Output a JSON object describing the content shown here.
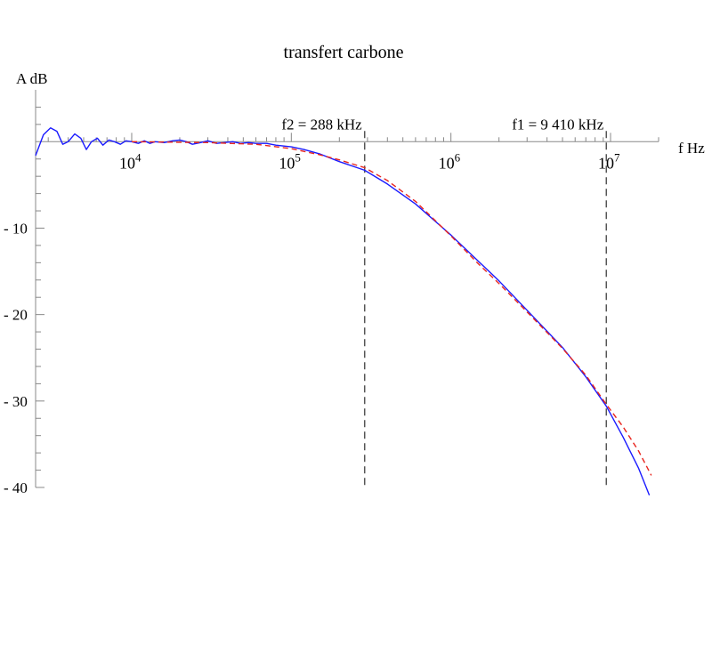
{
  "chart_data": {
    "type": "line",
    "title": "transfert carbone",
    "xlabel": "f Hz",
    "ylabel": "A dB",
    "x_scale": "log",
    "xlim": [
      2500,
      20000000
    ],
    "ylim": [
      -40,
      6
    ],
    "x_ticks": [
      {
        "value": 10000,
        "base": "10",
        "exp": "4"
      },
      {
        "value": 100000,
        "base": "10",
        "exp": "5"
      },
      {
        "value": 1000000,
        "base": "10",
        "exp": "6"
      },
      {
        "value": 10000000,
        "base": "10",
        "exp": "7"
      }
    ],
    "y_ticks": [
      {
        "value": -10,
        "label": "- 10"
      },
      {
        "value": -20,
        "label": "- 20"
      },
      {
        "value": -30,
        "label": "- 30"
      },
      {
        "value": -40,
        "label": "- 40"
      }
    ],
    "series": [
      {
        "color": "#1a1aff",
        "style": "solid",
        "x": [
          2500,
          2800,
          3100,
          3400,
          3700,
          4000,
          4400,
          4800,
          5200,
          5600,
          6100,
          6600,
          7200,
          7800,
          8500,
          9200,
          10000,
          11000,
          12000,
          13000,
          14000,
          16000,
          18000,
          20000,
          22000,
          24000,
          27000,
          30000,
          34000,
          38000,
          43000,
          48000,
          54000,
          60000,
          70000,
          80000,
          90000,
          100000,
          120000,
          150000,
          200000,
          288000,
          400000,
          600000,
          1000000,
          1500000,
          2000000,
          3000000,
          5000000,
          7000000,
          9410000,
          12000000,
          15000000,
          17500000
        ],
        "y": [
          -1.6,
          0.8,
          1.6,
          1.2,
          -0.3,
          0.0,
          0.9,
          0.4,
          -0.9,
          0.0,
          0.4,
          -0.4,
          0.2,
          0.0,
          -0.3,
          0.1,
          0.0,
          -0.2,
          0.1,
          -0.2,
          0.0,
          -0.1,
          0.1,
          0.2,
          0.0,
          -0.3,
          -0.1,
          0.1,
          -0.2,
          -0.1,
          0.0,
          -0.2,
          -0.1,
          -0.2,
          -0.2,
          -0.4,
          -0.5,
          -0.6,
          -0.9,
          -1.4,
          -2.3,
          -3.3,
          -4.9,
          -7.2,
          -10.8,
          -13.9,
          -16.1,
          -19.5,
          -23.8,
          -27.2,
          -30.6,
          -34.2,
          -37.8,
          -40.9
        ]
      },
      {
        "color": "#e8251e",
        "style": "dashed",
        "x": [
          10000,
          30000,
          60000,
          100000,
          150000,
          200000,
          288000,
          400000,
          600000,
          1000000,
          1500000,
          2000000,
          3000000,
          5000000,
          7000000,
          9410000,
          12000000,
          15000000,
          18000000
        ],
        "y": [
          0.0,
          -0.1,
          -0.3,
          -0.8,
          -1.5,
          -2.1,
          -3.0,
          -4.5,
          -6.9,
          -10.9,
          -14.2,
          -16.4,
          -19.7,
          -23.9,
          -27.0,
          -30.4,
          -33.0,
          -35.8,
          -38.6
        ]
      }
    ],
    "markers": [
      {
        "x": 288000,
        "label": "f2 = 288 kHz"
      },
      {
        "x": 9410000,
        "label": "f1 = 9 410 kHz"
      }
    ]
  }
}
